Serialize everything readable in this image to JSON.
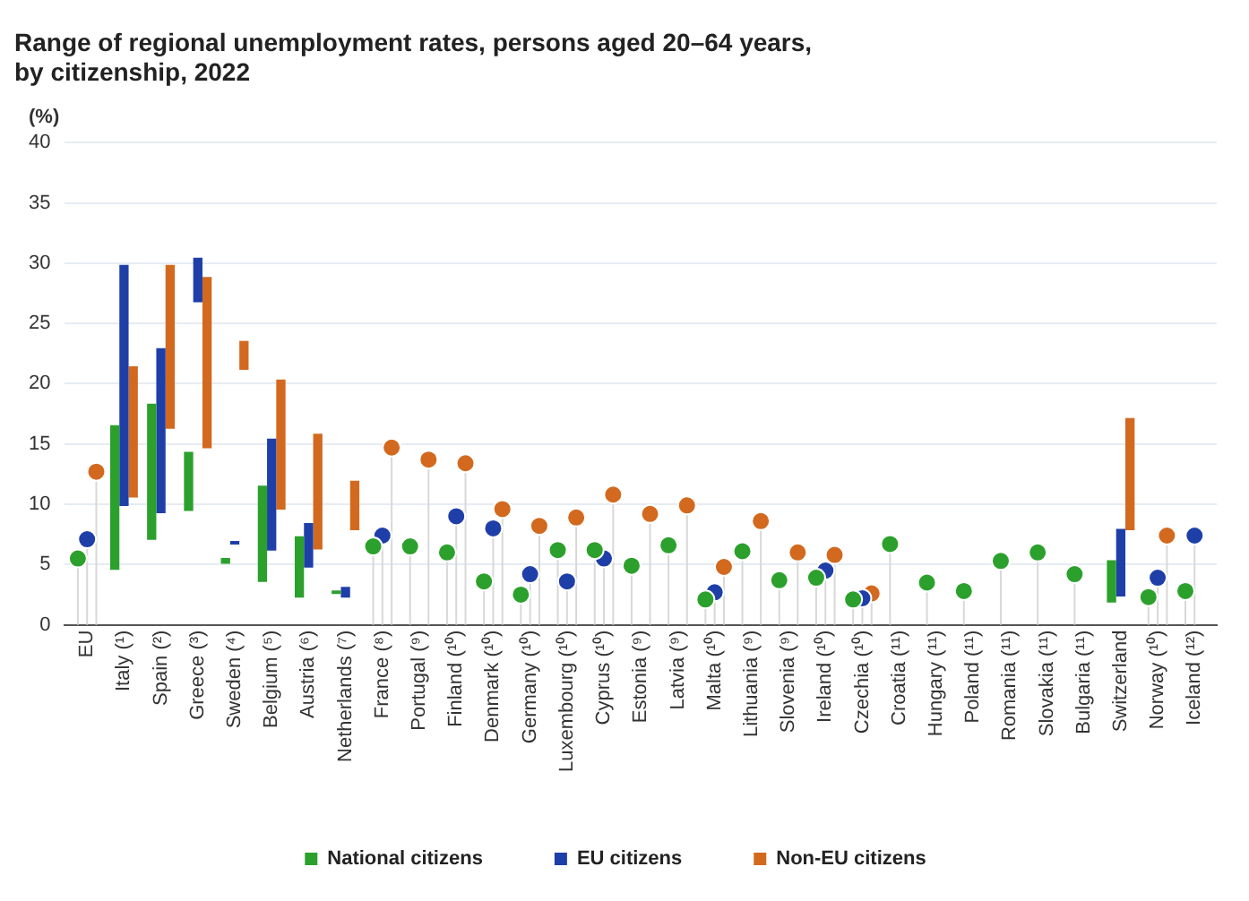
{
  "chart_data": {
    "type": "bar",
    "title": "Range of regional unemployment rates, persons aged 20–64 years,\nby citizenship, 2022",
    "ylabel": "(%)",
    "categories": [
      "EU",
      "Italy (¹)",
      "Spain (²)",
      "Greece (³)",
      "Sweden (⁴)",
      "Belgium (⁵)",
      "Austria (⁶)",
      "Netherlands (⁷)",
      "France (⁸)",
      "Portugal (⁹)",
      "Finland (¹⁰)",
      "Denmark (¹⁰)",
      "Germany (¹⁰)",
      "Luxembourg (¹⁰)",
      "Cyprus (¹⁰)",
      "Estonia (⁹)",
      "Latvia (⁹)",
      "Malta (¹⁰)",
      "Lithuania (⁹)",
      "Slovenia (⁹)",
      "Ireland (¹⁰)",
      "Czechia (¹⁰)",
      "Croatia (¹¹)",
      "Hungary (¹¹)",
      "Poland (¹¹)",
      "Romania (¹¹)",
      "Slovakia (¹¹)",
      "Bulgaria (¹¹)",
      "Switzerland",
      "Norway (¹⁰)",
      "Iceland (¹²)"
    ],
    "series": [
      {
        "name": "National citizens",
        "color": "#2ca02c",
        "base": [
          null,
          4.6,
          7.1,
          9.5,
          5.1,
          3.6,
          2.3,
          2.6,
          null,
          null,
          null,
          null,
          null,
          null,
          null,
          null,
          null,
          null,
          null,
          null,
          null,
          null,
          null,
          null,
          null,
          null,
          null,
          null,
          1.9,
          null,
          null
        ],
        "values": [
          null,
          11.9,
          11.2,
          4.8,
          0.4,
          7.9,
          5.0,
          0.2,
          null,
          null,
          null,
          null,
          null,
          null,
          null,
          null,
          null,
          null,
          null,
          null,
          null,
          null,
          null,
          null,
          null,
          null,
          null,
          null,
          3.4,
          null,
          null
        ]
      },
      {
        "name": "EU citizens",
        "color": "#1f3fa8",
        "base": [
          null,
          9.9,
          9.3,
          26.8,
          6.7,
          6.2,
          4.8,
          2.3,
          null,
          null,
          null,
          null,
          null,
          null,
          null,
          null,
          null,
          null,
          null,
          null,
          null,
          null,
          null,
          null,
          null,
          null,
          null,
          null,
          2.4,
          null,
          null
        ],
        "values": [
          null,
          19.9,
          13.6,
          3.6,
          0.2,
          9.2,
          3.6,
          0.8,
          null,
          null,
          null,
          null,
          null,
          null,
          null,
          null,
          null,
          null,
          null,
          null,
          null,
          null,
          null,
          null,
          null,
          null,
          null,
          null,
          5.5,
          null,
          null
        ]
      },
      {
        "name": "Non-EU citizens",
        "color": "#d2691e",
        "base": [
          null,
          10.6,
          16.3,
          14.7,
          21.2,
          9.6,
          6.3,
          7.9,
          null,
          null,
          null,
          null,
          null,
          null,
          null,
          null,
          null,
          null,
          null,
          null,
          null,
          null,
          null,
          null,
          null,
          null,
          null,
          null,
          7.9,
          null,
          null
        ],
        "values": [
          null,
          10.8,
          13.5,
          14.1,
          2.3,
          10.7,
          9.5,
          4.0,
          null,
          null,
          null,
          null,
          null,
          null,
          null,
          null,
          null,
          null,
          null,
          null,
          null,
          null,
          null,
          null,
          null,
          null,
          null,
          null,
          9.2,
          null,
          null
        ]
      },
      {
        "type": "lollipop",
        "color": "#2ca02c",
        "values": [
          5.5,
          null,
          null,
          null,
          null,
          null,
          null,
          null,
          6.5,
          6.5,
          6.0,
          3.6,
          2.5,
          6.2,
          6.2,
          4.9,
          6.6,
          2.1,
          6.1,
          3.7,
          3.9,
          2.1,
          6.7,
          3.5,
          2.8,
          5.3,
          6.0,
          4.2,
          null,
          2.3,
          2.8
        ]
      },
      {
        "type": "lollipop",
        "color": "#1f3fa8",
        "values": [
          7.1,
          null,
          null,
          null,
          null,
          null,
          null,
          null,
          7.4,
          null,
          9.0,
          8.0,
          4.2,
          3.6,
          5.5,
          null,
          null,
          2.7,
          null,
          null,
          4.5,
          2.2,
          null,
          null,
          null,
          null,
          null,
          null,
          null,
          3.9,
          7.4
        ]
      },
      {
        "type": "lollipop",
        "color": "#d2691e",
        "values": [
          12.7,
          null,
          null,
          null,
          null,
          null,
          null,
          null,
          14.7,
          13.7,
          13.4,
          9.6,
          8.2,
          8.9,
          10.8,
          9.2,
          9.9,
          4.8,
          8.6,
          6.0,
          5.8,
          2.6,
          null,
          null,
          null,
          null,
          null,
          null,
          null,
          7.4,
          null
        ]
      }
    ],
    "ylim": [
      0,
      40
    ],
    "yticks": [
      0,
      5,
      10,
      15,
      20,
      25,
      30,
      35,
      40
    ],
    "grid": "y",
    "legend": "bottom",
    "marker": "circle"
  }
}
